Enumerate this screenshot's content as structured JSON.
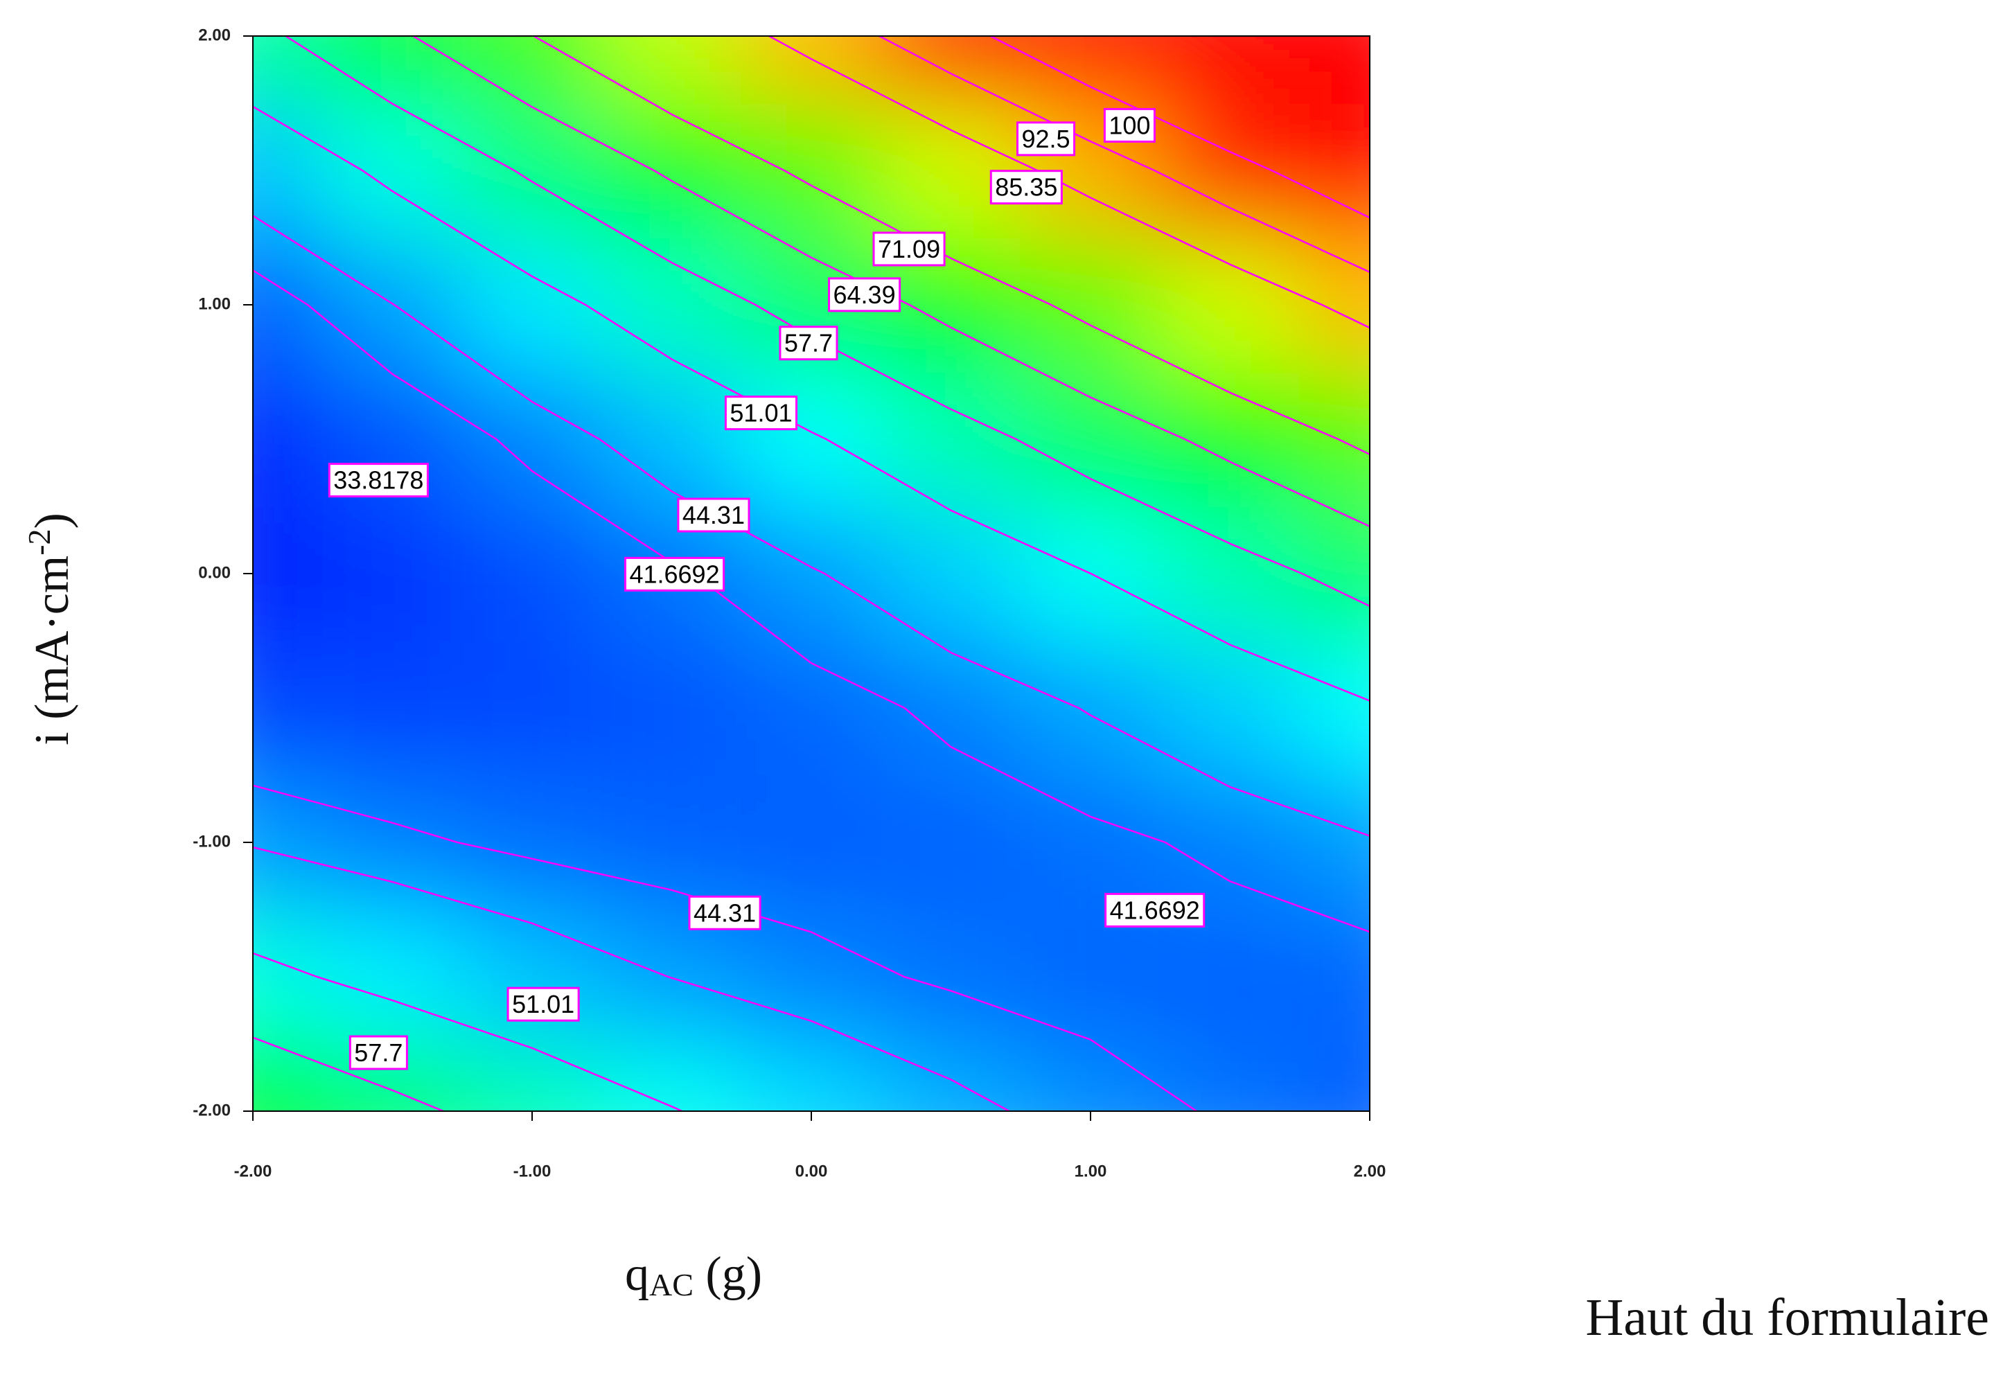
{
  "chart_data": {
    "type": "contour",
    "xlabel_parts": [
      "q",
      "AC",
      " (g)"
    ],
    "ylabel_parts": [
      "i (mA·cm",
      "-2",
      ")"
    ],
    "xlim": [
      -2,
      2
    ],
    "ylim": [
      -2,
      2
    ],
    "xticks": [
      {
        "value": -2,
        "label": "-2.00"
      },
      {
        "value": -1,
        "label": "-1.00"
      },
      {
        "value": 0,
        "label": "0.00"
      },
      {
        "value": 1,
        "label": "1.00"
      },
      {
        "value": 2,
        "label": "2.00"
      }
    ],
    "yticks": [
      {
        "value": -2,
        "label": "-2.00"
      },
      {
        "value": -1,
        "label": "-1.00"
      },
      {
        "value": 0,
        "label": "0.00"
      },
      {
        "value": 1,
        "label": "1.00"
      },
      {
        "value": 2,
        "label": "2.00"
      }
    ],
    "x": [
      -2,
      -1.5,
      -1,
      -0.5,
      0,
      0.5,
      1,
      1.5,
      2
    ],
    "y": [
      -2,
      -1.5,
      -1,
      -0.5,
      0,
      0.5,
      1,
      1.5,
      2
    ],
    "z": [
      [
        64,
        59.25,
        55,
        51.25,
        48,
        45.25,
        43,
        41.25,
        40
      ],
      [
        52.5,
        49.25,
        46.5,
        44.25,
        42.5,
        41.25,
        40.5,
        40.25,
        40.5
      ],
      [
        44,
        42.25,
        41,
        40.25,
        40,
        40.25,
        41,
        42.25,
        44
      ],
      [
        38.5,
        38.25,
        38.5,
        39.25,
        40.5,
        42.25,
        44.5,
        47.25,
        50.5
      ],
      [
        36,
        37.25,
        39,
        41.25,
        44,
        47.25,
        51,
        55.25,
        60
      ],
      [
        36.5,
        39.25,
        42.5,
        46.25,
        50.5,
        55.25,
        60.5,
        66.25,
        72.5
      ],
      [
        40,
        44.25,
        49,
        54.25,
        60,
        66.25,
        73,
        80.25,
        88
      ],
      [
        46.5,
        52.25,
        58.5,
        65.25,
        72.5,
        80.25,
        88.5,
        97.25,
        106.5
      ],
      [
        56,
        63.25,
        71,
        79.25,
        88,
        97.25,
        107,
        117.25,
        128
      ]
    ],
    "zlim": [
      33.8178,
      100
    ],
    "colormap": [
      "#0000ff",
      "#00ffff",
      "#00ff00",
      "#ffff00",
      "#ff0000"
    ],
    "contour_color": "#ff00ff",
    "levels": [
      33.8178,
      41.6692,
      44.31,
      51.01,
      57.7,
      64.39,
      71.09,
      85.35,
      92.5,
      100
    ],
    "contour_labels": [
      {
        "value": 100,
        "x": 1.14,
        "y": 1.66
      },
      {
        "value": 92.5,
        "x": 0.84,
        "y": 1.61
      },
      {
        "value": 85.35,
        "x": 0.77,
        "y": 1.43
      },
      {
        "value": 71.09,
        "x": 0.35,
        "y": 1.2
      },
      {
        "value": 64.39,
        "x": 0.19,
        "y": 1.03
      },
      {
        "value": 57.7,
        "x": -0.01,
        "y": 0.85
      },
      {
        "value": 51.01,
        "x": -0.18,
        "y": 0.59
      },
      {
        "value": 44.31,
        "x": -0.35,
        "y": 0.21
      },
      {
        "value": 41.6692,
        "x": -0.49,
        "y": -0.01
      },
      {
        "value": 33.8178,
        "x": -1.55,
        "y": 0.34
      },
      {
        "value": 44.31,
        "x": -0.31,
        "y": -1.27
      },
      {
        "value": 41.6692,
        "x": 1.23,
        "y": -1.26
      },
      {
        "value": 51.01,
        "x": -0.96,
        "y": -1.61
      },
      {
        "value": 57.7,
        "x": -1.55,
        "y": -1.79
      }
    ]
  },
  "page_note": "Haut du formulaire"
}
